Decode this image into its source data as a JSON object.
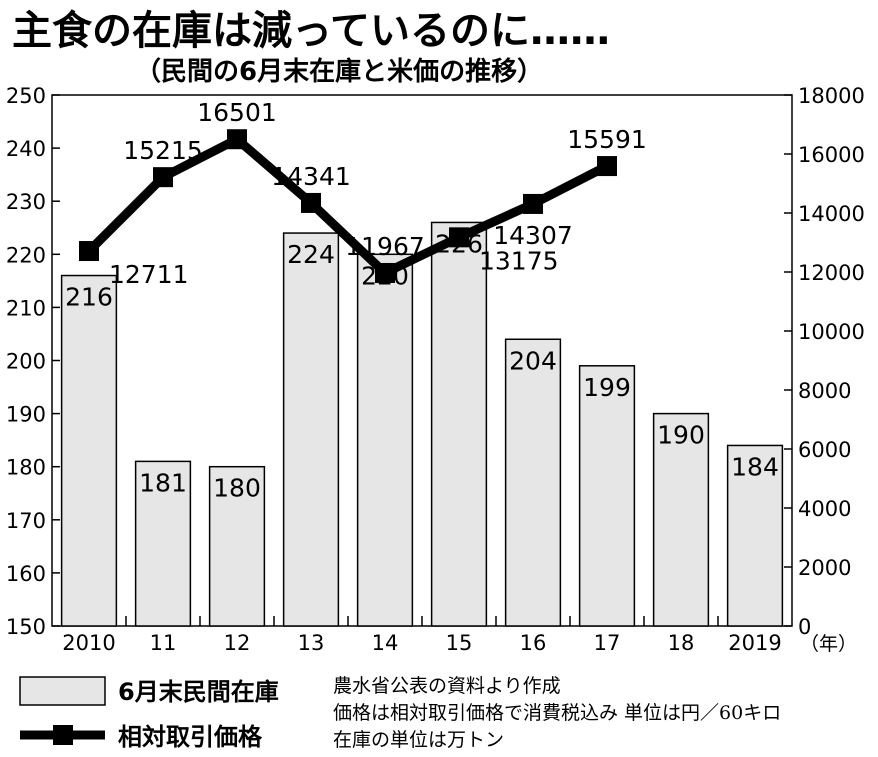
{
  "chart_data": {
    "type": "bar",
    "title": "主食の在庫は減っているのに……",
    "subtitle": "（民間の6月末在庫と米価の推移）",
    "categories": [
      "2010",
      "11",
      "12",
      "13",
      "14",
      "15",
      "16",
      "17",
      "18",
      "2019"
    ],
    "x_unit": "（年）",
    "series": [
      {
        "name": "6月末民間在庫",
        "type": "bar",
        "axis": "left",
        "values": [
          216,
          181,
          180,
          224,
          220,
          226,
          204,
          199,
          190,
          184
        ]
      },
      {
        "name": "相対取引価格",
        "type": "line",
        "axis": "right",
        "values": [
          12711,
          15215,
          16501,
          14341,
          11967,
          13175,
          14307,
          15591,
          null,
          null
        ]
      }
    ],
    "y_left": {
      "ylim": [
        150,
        250
      ],
      "ticks": [
        "150",
        "160",
        "170",
        "180",
        "190",
        "200",
        "210",
        "220",
        "230",
        "240",
        "250"
      ]
    },
    "y_right": {
      "ylim": [
        0,
        18000
      ],
      "ticks": [
        "0",
        "2000",
        "4000",
        "6000",
        "8000",
        "10000",
        "12000",
        "14000",
        "16000",
        "18000"
      ]
    },
    "legend_position": "bottom-left",
    "notes": [
      "農水省公表の資料より作成",
      "価格は相対取引価格で消費税込み 単位は円／60キロ",
      "在庫の単位は万トン"
    ],
    "colors": {
      "bar_fill": "#e6e6e6",
      "line": "#000000"
    }
  }
}
